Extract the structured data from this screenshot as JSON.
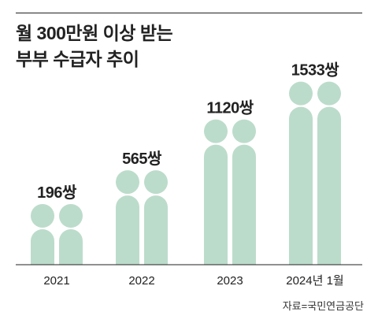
{
  "title_lines": [
    "월 300만원 이상 받는",
    "부부 수급자 추이"
  ],
  "source": "자료=국민연금공단",
  "colors": {
    "couple_fill": "#bcdccb",
    "baseline": "#222222",
    "text": "#222222"
  },
  "icon": "couple-silhouette",
  "chart_data": {
    "type": "bar",
    "categories": [
      "2021",
      "2022",
      "2023",
      "2024년 1월"
    ],
    "values": [
      196,
      565,
      1120,
      1533
    ],
    "value_labels": [
      "196쌍",
      "565쌍",
      "1120쌍",
      "1533쌍"
    ],
    "unit": "쌍",
    "xlabel": "",
    "ylabel": "",
    "grid": false,
    "legend": "none"
  }
}
